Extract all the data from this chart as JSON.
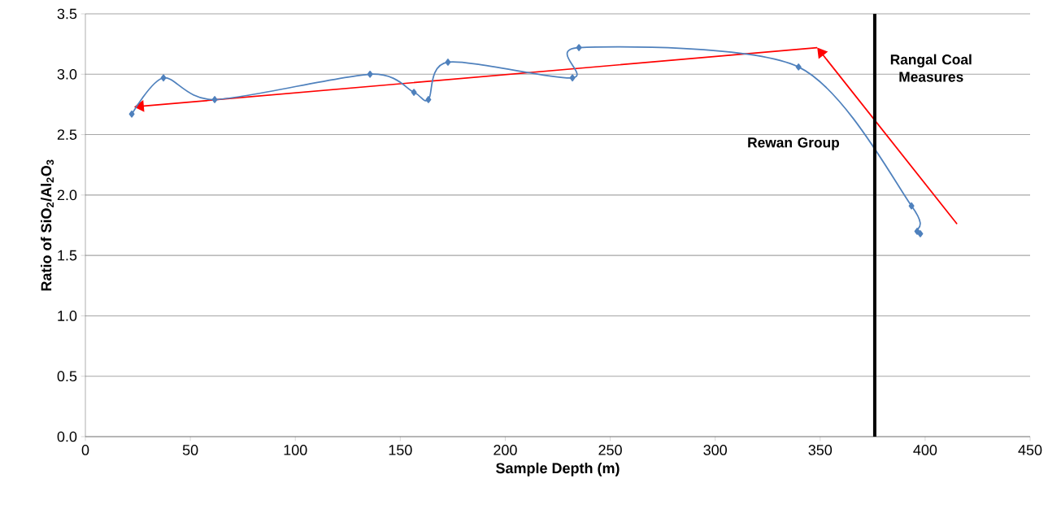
{
  "chart_data": {
    "type": "line",
    "xlabel": "Sample Depth (m)",
    "ylabel": "Ratio of SiO$_{2}$/Al$_{2}$O$_{3}$",
    "series": [
      {
        "color": "#4f81bd",
        "marker": "diamond",
        "x": [
          22.1,
          37.2,
          61.6,
          135.6,
          156.5,
          163.4,
          172.7,
          232.0,
          235.1,
          339.7,
          393.5,
          396.2,
          397.7
        ],
        "values": [
          2.67,
          2.97,
          2.79,
          3.0,
          2.85,
          2.79,
          3.1,
          2.97,
          3.22,
          3.06,
          1.91,
          1.7,
          1.68
        ]
      }
    ],
    "xlim": [
      0,
      450
    ],
    "xticks": [
      0,
      50,
      100,
      150,
      200,
      250,
      300,
      350,
      400,
      450
    ],
    "ylim": [
      0,
      3.5
    ],
    "yticks": [
      {
        "value": 0,
        "label": "0.0"
      },
      {
        "value": 0.5,
        "label": "0.5"
      },
      {
        "value": 1,
        "label": "1.0"
      },
      {
        "value": 1.5,
        "label": "1.5"
      },
      {
        "value": 2,
        "label": "2.0"
      },
      {
        "value": 2.5,
        "label": "2.5"
      },
      {
        "value": 3,
        "label": "3.0"
      },
      {
        "value": 3.5,
        "label": "3.5"
      }
    ],
    "grid": "y",
    "ref_lines": [
      {
        "axis": "x",
        "value": 376,
        "color": "#000000"
      }
    ],
    "annotations": [
      "Rewan Group",
      "Rangal Coal Measures"
    ]
  }
}
